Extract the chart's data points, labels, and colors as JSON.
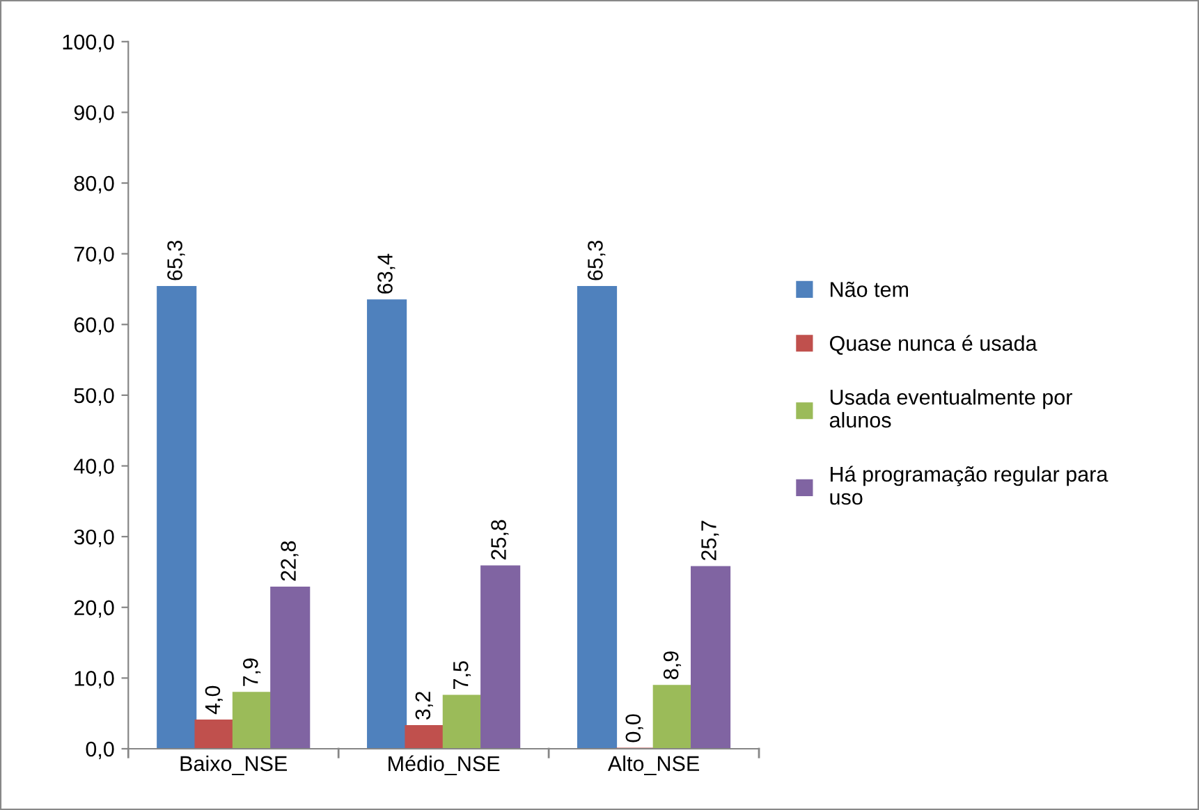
{
  "chart_data": {
    "type": "bar",
    "categories": [
      "Baixo_NSE",
      "Médio_NSE",
      "Alto_NSE"
    ],
    "series": [
      {
        "name": "Não tem",
        "color": "#4f81bd",
        "values": [
          65.3,
          63.4,
          65.3
        ],
        "value_labels": [
          "65,3",
          "63,4",
          "65,3"
        ]
      },
      {
        "name": "Quase nunca é usada",
        "color": "#c0504d",
        "values": [
          4.0,
          3.2,
          0.0
        ],
        "value_labels": [
          "4,0",
          "3,2",
          "0,0"
        ]
      },
      {
        "name": "Usada eventualmente por\nalunos",
        "color": "#9bbb59",
        "values": [
          7.9,
          7.5,
          8.9
        ],
        "value_labels": [
          "7,9",
          "7,5",
          "8,9"
        ]
      },
      {
        "name": "Há programação regular para\nuso",
        "color": "#8064a2",
        "values": [
          22.8,
          25.8,
          25.7
        ],
        "value_labels": [
          "22,8",
          "25,8",
          "25,7"
        ]
      }
    ],
    "ylim": [
      0,
      100
    ],
    "yticks": [
      {
        "value": 0,
        "label": "0,0"
      },
      {
        "value": 10,
        "label": "10,0"
      },
      {
        "value": 20,
        "label": "20,0"
      },
      {
        "value": 30,
        "label": "30,0"
      },
      {
        "value": 40,
        "label": "40,0"
      },
      {
        "value": 50,
        "label": "50,0"
      },
      {
        "value": 60,
        "label": "60,0"
      },
      {
        "value": 70,
        "label": "70,0"
      },
      {
        "value": 80,
        "label": "80,0"
      },
      {
        "value": 90,
        "label": "90,0"
      },
      {
        "value": 100,
        "label": "100,0"
      }
    ],
    "grid": false,
    "legend": "right"
  }
}
